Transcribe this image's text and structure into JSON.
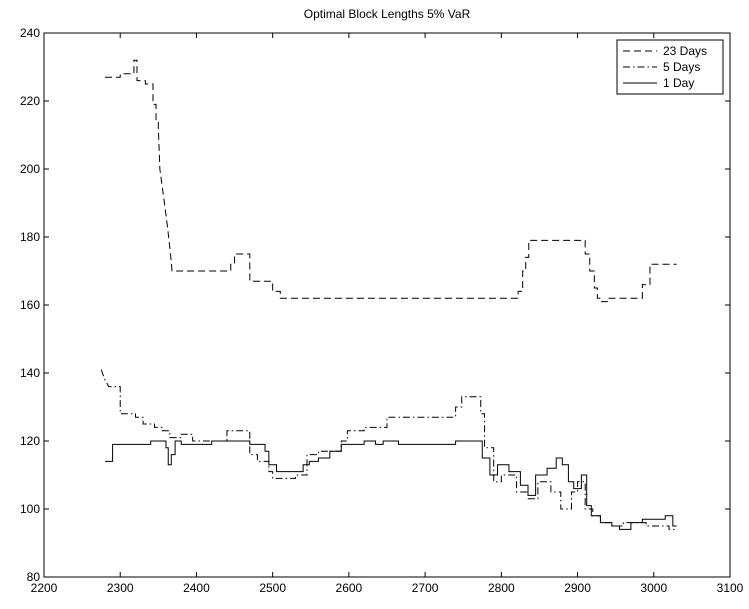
{
  "chart_data": {
    "type": "line",
    "title": "Optimal Block Lengths 5% VaR",
    "xlim": [
      2200,
      3100
    ],
    "xticks": [
      2200,
      2300,
      2400,
      2500,
      2600,
      2700,
      2800,
      2900,
      3000,
      3100
    ],
    "ylim": [
      80,
      240
    ],
    "yticks": [
      80,
      100,
      120,
      140,
      160,
      180,
      200,
      220,
      240
    ],
    "legend": "top-right",
    "series": [
      {
        "name": "23 Days",
        "color": "#000000",
        "linestyle": "dashed",
        "x": [
          2280,
          2300,
          2300,
          2318,
          2318,
          2322,
          2322,
          2333,
          2333,
          2343,
          2343,
          2347,
          2347,
          2350,
          2350,
          2352,
          2358,
          2362,
          2366,
          2368,
          2445,
          2445,
          2450,
          2450,
          2470,
          2470,
          2500,
          2500,
          2510,
          2510,
          2822,
          2822,
          2828,
          2828,
          2832,
          2832,
          2836,
          2836,
          2910,
          2910,
          2916,
          2916,
          2922,
          2922,
          2926,
          2926,
          2930,
          2930,
          2940,
          2940,
          2985,
          2985,
          2995,
          2995,
          3030
        ],
        "values": [
          227,
          227,
          228,
          228,
          232,
          232,
          226,
          226,
          225,
          225,
          219,
          219,
          214,
          214,
          212,
          200,
          190,
          183,
          175,
          170,
          170,
          172,
          172,
          175,
          175,
          167,
          167,
          164,
          164,
          162,
          162,
          164,
          164,
          170,
          170,
          174,
          174,
          179,
          179,
          175,
          175,
          170,
          170,
          165,
          165,
          162,
          162,
          161,
          161,
          162,
          162,
          166,
          166,
          172,
          172
        ]
      },
      {
        "name": "5 Days",
        "color": "#000000",
        "linestyle": "dashdot",
        "x": [
          2275,
          2280,
          2285,
          2300,
          2300,
          2320,
          2320,
          2330,
          2330,
          2345,
          2345,
          2355,
          2355,
          2365,
          2365,
          2380,
          2380,
          2395,
          2395,
          2440,
          2440,
          2470,
          2470,
          2480,
          2480,
          2495,
          2495,
          2500,
          2500,
          2530,
          2530,
          2545,
          2545,
          2560,
          2560,
          2590,
          2590,
          2598,
          2598,
          2620,
          2620,
          2650,
          2650,
          2740,
          2740,
          2748,
          2748,
          2773,
          2773,
          2778,
          2778,
          2790,
          2790,
          2800,
          2800,
          2820,
          2820,
          2835,
          2835,
          2848,
          2848,
          2865,
          2865,
          2878,
          2878,
          2892,
          2892,
          2900,
          2900,
          2910,
          2910,
          2920,
          2920,
          2930,
          2930,
          2945,
          2945,
          2960,
          2960,
          2990,
          2990,
          3020,
          3020,
          3030
        ],
        "values": [
          141,
          138,
          136,
          136,
          128,
          128,
          127,
          127,
          125,
          125,
          124,
          124,
          123,
          123,
          121,
          121,
          122,
          122,
          120,
          120,
          123,
          123,
          116,
          116,
          114,
          114,
          111,
          111,
          109,
          109,
          110,
          110,
          116,
          116,
          117,
          117,
          120,
          120,
          123,
          123,
          124,
          124,
          127,
          127,
          130,
          130,
          133,
          133,
          128,
          128,
          118,
          118,
          108,
          108,
          110,
          110,
          105,
          105,
          103,
          103,
          108,
          108,
          105,
          105,
          100,
          100,
          105,
          105,
          108,
          108,
          100,
          100,
          98,
          98,
          96,
          96,
          95,
          95,
          96,
          96,
          95,
          95,
          94,
          94
        ]
      },
      {
        "name": "1 Day",
        "color": "#000000",
        "linestyle": "solid",
        "x": [
          2280,
          2290,
          2290,
          2340,
          2340,
          2360,
          2360,
          2363,
          2363,
          2367,
          2367,
          2372,
          2372,
          2380,
          2380,
          2420,
          2420,
          2470,
          2470,
          2490,
          2490,
          2495,
          2495,
          2505,
          2505,
          2540,
          2540,
          2548,
          2548,
          2560,
          2560,
          2575,
          2575,
          2590,
          2590,
          2620,
          2620,
          2635,
          2635,
          2645,
          2645,
          2665,
          2665,
          2740,
          2740,
          2775,
          2775,
          2785,
          2785,
          2795,
          2795,
          2810,
          2810,
          2825,
          2825,
          2835,
          2835,
          2845,
          2845,
          2860,
          2860,
          2872,
          2872,
          2880,
          2880,
          2888,
          2888,
          2895,
          2895,
          2905,
          2905,
          2912,
          2912,
          2918,
          2918,
          2930,
          2930,
          2945,
          2945,
          2955,
          2955,
          2970,
          2970,
          2985,
          2985,
          3015,
          3015,
          3025,
          3025,
          3030
        ],
        "values": [
          114,
          114,
          119,
          119,
          120,
          120,
          118,
          118,
          113,
          113,
          116,
          116,
          120,
          120,
          119,
          119,
          120,
          120,
          119,
          119,
          117,
          117,
          113,
          113,
          111,
          111,
          113,
          113,
          114,
          114,
          115,
          115,
          117,
          117,
          119,
          119,
          120,
          120,
          119,
          119,
          120,
          120,
          119,
          119,
          120,
          120,
          115,
          115,
          110,
          110,
          113,
          113,
          111,
          111,
          107,
          107,
          104,
          104,
          110,
          110,
          112,
          112,
          115,
          115,
          113,
          113,
          108,
          108,
          106,
          106,
          110,
          110,
          101,
          101,
          98,
          98,
          96,
          96,
          95,
          95,
          94,
          94,
          96,
          96,
          97,
          97,
          98,
          98,
          95,
          95
        ]
      }
    ]
  }
}
